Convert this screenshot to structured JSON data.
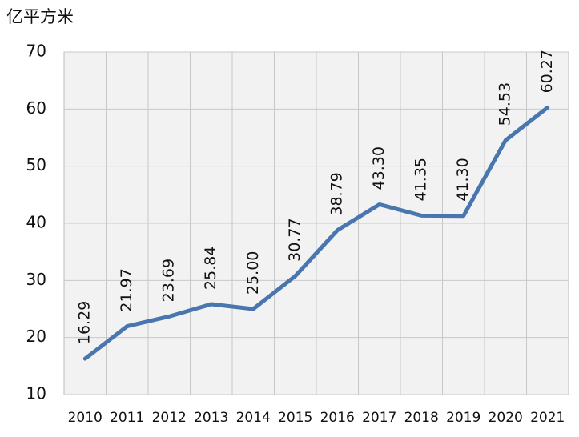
{
  "chart_data": {
    "type": "line",
    "y_label": "亿平方米",
    "categories": [
      "2010",
      "2011",
      "2012",
      "2013",
      "2014",
      "2015",
      "2016",
      "2017",
      "2018",
      "2019",
      "2020",
      "2021"
    ],
    "values": [
      16.29,
      21.97,
      23.69,
      25.84,
      25.0,
      30.77,
      38.79,
      43.3,
      41.35,
      41.3,
      54.53,
      60.27
    ],
    "value_labels": [
      "16.29",
      "21.97",
      "23.69",
      "25.84",
      "25.00",
      "30.77",
      "38.79",
      "43.30",
      "41.35",
      "41.30",
      "54.53",
      "60.27"
    ],
    "color": "#4a76b0",
    "ylim": [
      10,
      70
    ],
    "yticks": [
      10,
      20,
      30,
      40,
      50,
      60,
      70
    ],
    "grid": true
  }
}
